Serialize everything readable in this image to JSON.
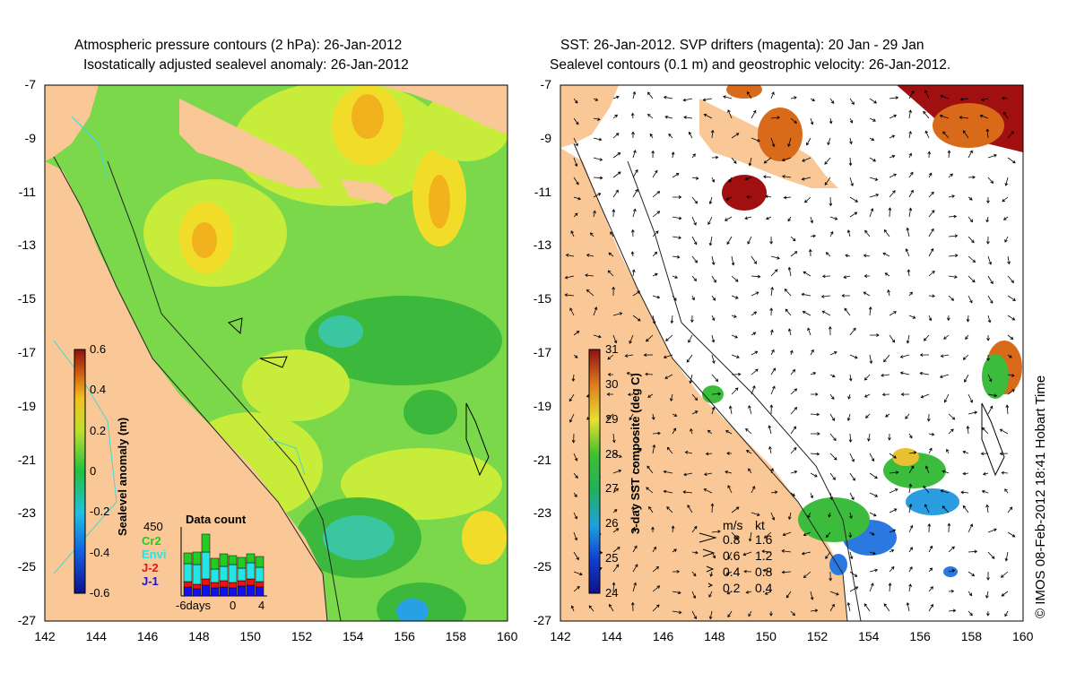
{
  "left_panel": {
    "title_line1": "Atmospheric pressure contours (2 hPa): 26-Jan-2012",
    "title_line2": "Isostatically adjusted sealevel anomaly: 26-Jan-2012",
    "colorbar": {
      "label": "Sealevel anomaly (m)",
      "ticks": [
        "0.6",
        "0.4",
        "0.2",
        "0",
        "-0.2",
        "-0.4",
        "-0.6"
      ]
    },
    "data_count": {
      "title": "Data count",
      "max_label": "450",
      "legend": [
        {
          "name": "Cr2",
          "color": "#22cc22"
        },
        {
          "name": "Envi",
          "color": "#22e6e6"
        },
        {
          "name": "J-2",
          "color": "#ee1111"
        },
        {
          "name": "J-1",
          "color": "#1111ee"
        }
      ],
      "axis_labels": [
        "-6days",
        "0",
        "4"
      ]
    }
  },
  "right_panel": {
    "title_line1": "SST: 26-Jan-2012. SVP drifters (magenta): 20 Jan - 29 Jan",
    "title_line2": "Sealevel contours (0.1 m) and geostrophic velocity: 26-Jan-2012.",
    "colorbar": {
      "label": "3-day SST composite (deg C)",
      "ticks": [
        "31",
        "30",
        "29",
        "28",
        "27",
        "26",
        "25",
        "24"
      ]
    },
    "velocity_legend": {
      "header_ms": "m/s",
      "header_kt": "kt",
      "rows": [
        {
          "ms": "0.8",
          "kt": "1.6"
        },
        {
          "ms": "0.6",
          "kt": "1.2"
        },
        {
          "ms": "0.4",
          "kt": "0.8"
        },
        {
          "ms": "0.2",
          "kt": "0.4"
        }
      ]
    }
  },
  "axes": {
    "y_ticks": [
      "-7",
      "-9",
      "-11",
      "-13",
      "-15",
      "-17",
      "-19",
      "-21",
      "-23",
      "-25",
      "-27"
    ],
    "x_ticks": [
      "142",
      "144",
      "146",
      "148",
      "150",
      "152",
      "154",
      "156",
      "158",
      "160"
    ]
  },
  "credit": "© IMOS 08-Feb-2012 18:41 Hobart Time",
  "colors": {
    "land": "#f9c896",
    "sla_green": "#7ad84a",
    "sla_light": "#c8ec3a",
    "sla_yellow": "#f2dc2a",
    "sla_orange": "#f2b21e",
    "sla_dark_green": "#3cb83c",
    "sla_teal": "#3ac6a0",
    "sla_blue": "#28a0e6",
    "sst_red": "#a01010",
    "sst_orange": "#d86a1a",
    "sst_green": "#3cbc3c",
    "sst_blue": "#2a78e0"
  }
}
